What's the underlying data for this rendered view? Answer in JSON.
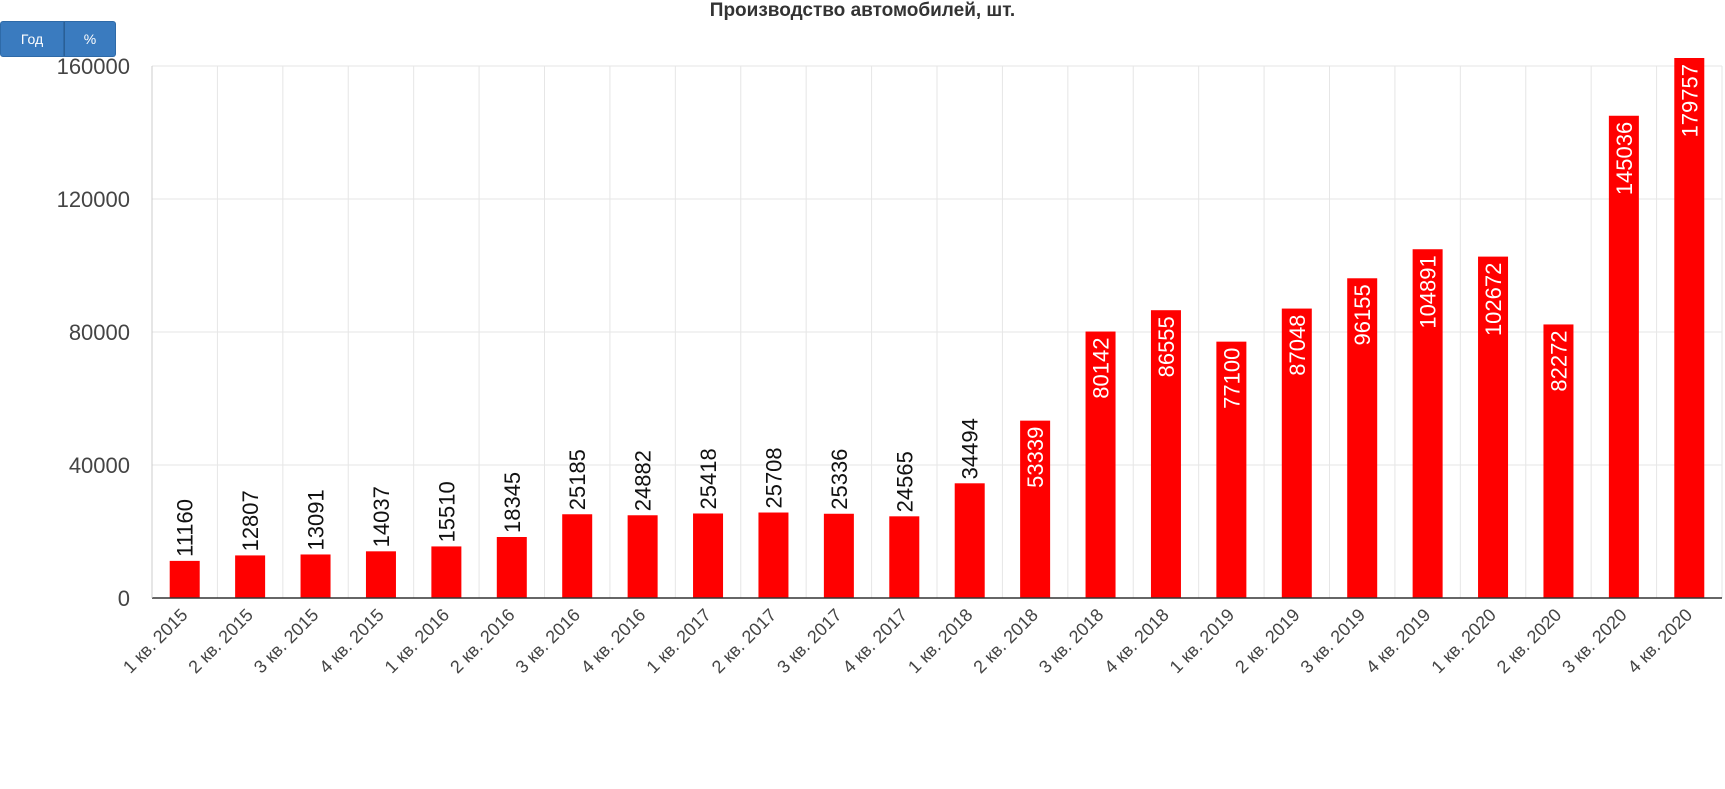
{
  "controls": {
    "year_label": "Год",
    "percent_label": "%"
  },
  "chart_data": {
    "type": "bar",
    "title": "Производство автомобилей, шт.",
    "xlabel": "",
    "ylabel": "",
    "ylim": [
      0,
      160000
    ],
    "yticks": [
      0,
      40000,
      80000,
      120000,
      160000
    ],
    "grid": true,
    "bar_color": "#ff0000",
    "categories": [
      "1 кв. 2015",
      "2 кв. 2015",
      "3 кв. 2015",
      "4 кв. 2015",
      "1 кв. 2016",
      "2 кв. 2016",
      "3 кв. 2016",
      "4 кв. 2016",
      "1 кв. 2017",
      "2 кв. 2017",
      "3 кв. 2017",
      "4 кв. 2017",
      "1 кв. 2018",
      "2 кв. 2018",
      "3 кв. 2018",
      "4 кв. 2018",
      "1 кв. 2019",
      "2 кв. 2019",
      "3 кв. 2019",
      "4 кв. 2019",
      "1 кв. 2020",
      "2 кв. 2020",
      "3 кв. 2020",
      "4 кв. 2020"
    ],
    "values": [
      11160,
      12807,
      13091,
      14037,
      15510,
      18345,
      25185,
      24882,
      25418,
      25708,
      25336,
      24565,
      34494,
      53339,
      80142,
      86555,
      77100,
      87048,
      96155,
      104891,
      102672,
      82272,
      145036,
      179757
    ]
  }
}
